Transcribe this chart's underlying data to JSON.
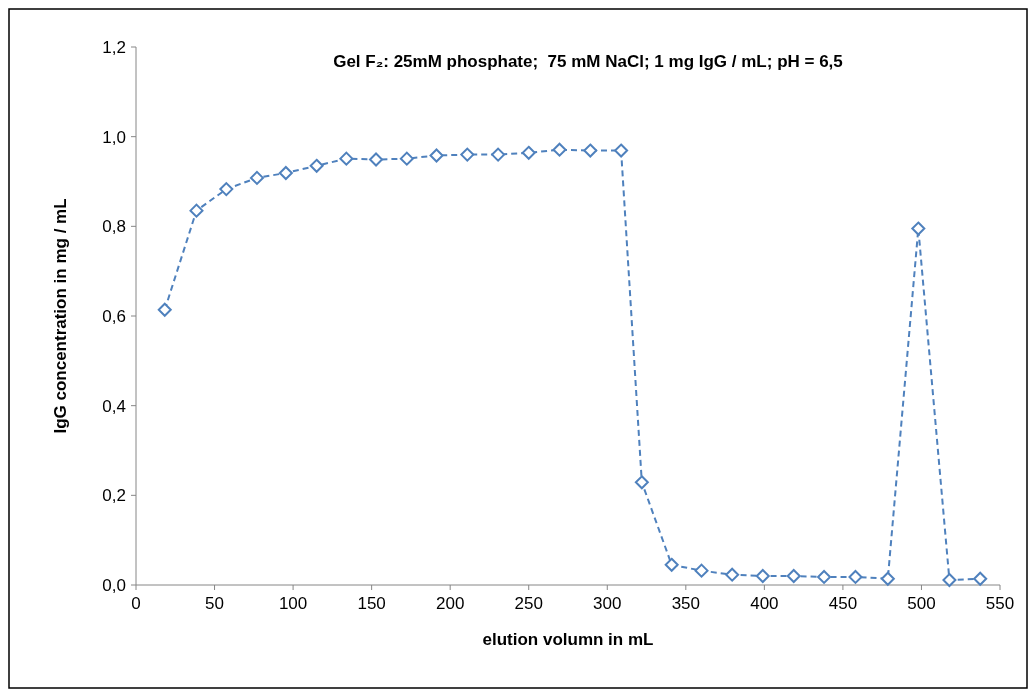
{
  "chart_data": {
    "type": "line",
    "title": "Gel F₂: 25mM phosphate;  75 mM NaCl; 1 mg IgG / mL; pH = 6,5",
    "xlabel": "elution volumn in mL",
    "ylabel": "IgG concentration in mg / mL",
    "x": [
      18.3,
      38.5,
      57.5,
      77,
      95.4,
      115,
      133.9,
      152.8,
      172.4,
      191.3,
      210.9,
      230.5,
      250,
      269.6,
      289.2,
      308.8,
      322,
      341,
      360,
      379.5,
      399,
      418.7,
      438,
      458,
      478.6,
      498,
      517.8,
      537.4
    ],
    "series": [
      {
        "color": "#4f81bd",
        "values": [
          0.614,
          0.835,
          0.883,
          0.908,
          0.919,
          0.935,
          0.951,
          0.949,
          0.951,
          0.958,
          0.96,
          0.96,
          0.964,
          0.971,
          0.969,
          0.969,
          0.229,
          0.045,
          0.032,
          0.023,
          0.02,
          0.02,
          0.018,
          0.018,
          0.014,
          0.795,
          0.011,
          0.014
        ]
      }
    ],
    "xlim": [
      0,
      550
    ],
    "xticks": [
      0,
      50,
      100,
      150,
      200,
      250,
      300,
      350,
      400,
      450,
      500,
      550
    ],
    "ylim": [
      0,
      1.2
    ],
    "yticks": [
      {
        "value": 0,
        "label": "0,0"
      },
      {
        "value": 0.2,
        "label": "0,2"
      },
      {
        "value": 0.4,
        "label": "0,4"
      },
      {
        "value": 0.6,
        "label": "0,6"
      },
      {
        "value": 0.8,
        "label": "0,8"
      },
      {
        "value": 1.0,
        "label": "1,0"
      },
      {
        "value": 1.2,
        "label": "1,2"
      }
    ],
    "marker": "diamond",
    "line_style": "dashed"
  }
}
